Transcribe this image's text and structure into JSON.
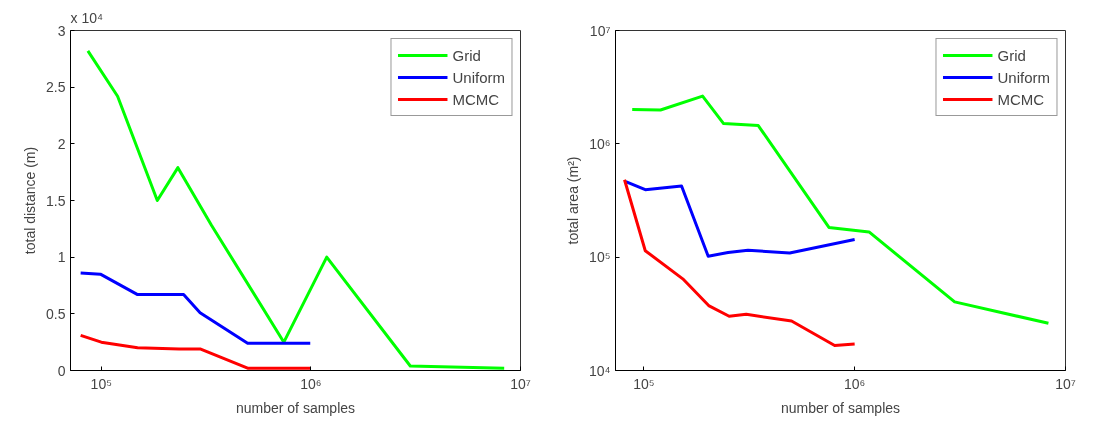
{
  "chart_data": [
    {
      "type": "line",
      "xlabel": "number of samples",
      "ylabel": "total distance (m)",
      "annotations": [
        "x 10⁴"
      ],
      "log": "x",
      "xlim": [
        71300,
        10000000
      ],
      "ylim": [
        0,
        3
      ],
      "xticks": [
        {
          "value": 100000,
          "label": "10⁵"
        },
        {
          "value": 1000000,
          "label": "10⁶"
        },
        {
          "value": 10000000,
          "label": "10⁷"
        }
      ],
      "yticks": [
        0,
        0.5,
        1,
        1.5,
        2,
        2.5,
        3
      ],
      "grid": false,
      "legend": "top right",
      "line_style": "solid",
      "marker": "none",
      "series": [
        {
          "name": "Grid",
          "color": "#00ff00",
          "x": [
            86300,
            119600,
            185000,
            232000,
            336000,
            743000,
            1190000,
            2980000,
            8360000
          ],
          "values": [
            2.82,
            2.42,
            1.5,
            1.79,
            1.28,
            0.25,
            1.0,
            0.04,
            0.02
          ]
        },
        {
          "name": "Uniform",
          "color": "#0000ff",
          "x": [
            79700,
            99000,
            149000,
            247000,
            296000,
            499000,
            993000
          ],
          "values": [
            0.86,
            0.85,
            0.67,
            0.67,
            0.51,
            0.24,
            0.24
          ]
        },
        {
          "name": "MCMC",
          "color": "#ff0000",
          "x": [
            79700,
            100000,
            149000,
            235000,
            296000,
            499000,
            993000
          ],
          "values": [
            0.31,
            0.25,
            0.2,
            0.19,
            0.19,
            0.02,
            0.02
          ]
        }
      ]
    },
    {
      "type": "line",
      "xlabel": "number of samples",
      "ylabel": "total area (m²)",
      "log": "xy",
      "xlim": [
        73400,
        10000000
      ],
      "ylim": [
        10000,
        10000000
      ],
      "xticks": [
        {
          "value": 100000,
          "label": "10⁵"
        },
        {
          "value": 1000000,
          "label": "10⁶"
        },
        {
          "value": 10000000,
          "label": "10⁷"
        }
      ],
      "yticks": [
        {
          "value": 10000,
          "label": "10⁴"
        },
        {
          "value": 100000,
          "label": "10⁵"
        },
        {
          "value": 1000000,
          "label": "10⁶"
        },
        {
          "value": 10000000,
          "label": "10⁷"
        }
      ],
      "grid": false,
      "legend": "top right",
      "line_style": "solid",
      "marker": "none",
      "series": [
        {
          "name": "Grid",
          "color": "#00ff00",
          "x": [
            88100,
            120000,
            190000,
            239000,
            349000,
            755000,
            1170000,
            2980000,
            8300000
          ],
          "values": [
            2010000,
            1990000,
            2640000,
            1510000,
            1450000,
            183000,
            167000,
            40300,
            26100
          ]
        },
        {
          "name": "Uniform",
          "color": "#0000ff",
          "x": [
            82100,
            101600,
            151000,
            202000,
            251000,
            312000,
            492000,
            1000000
          ],
          "values": [
            464000,
            394000,
            425000,
            102000,
            110000,
            115000,
            109000,
            143000
          ]
        },
        {
          "name": "MCMC",
          "color": "#ff0000",
          "x": [
            81000,
            101600,
            153000,
            203000,
            254000,
            306000,
            502000,
            804000,
            1000000
          ],
          "values": [
            482000,
            114000,
            64400,
            37400,
            30100,
            31300,
            27300,
            16600,
            17100
          ]
        }
      ]
    }
  ]
}
